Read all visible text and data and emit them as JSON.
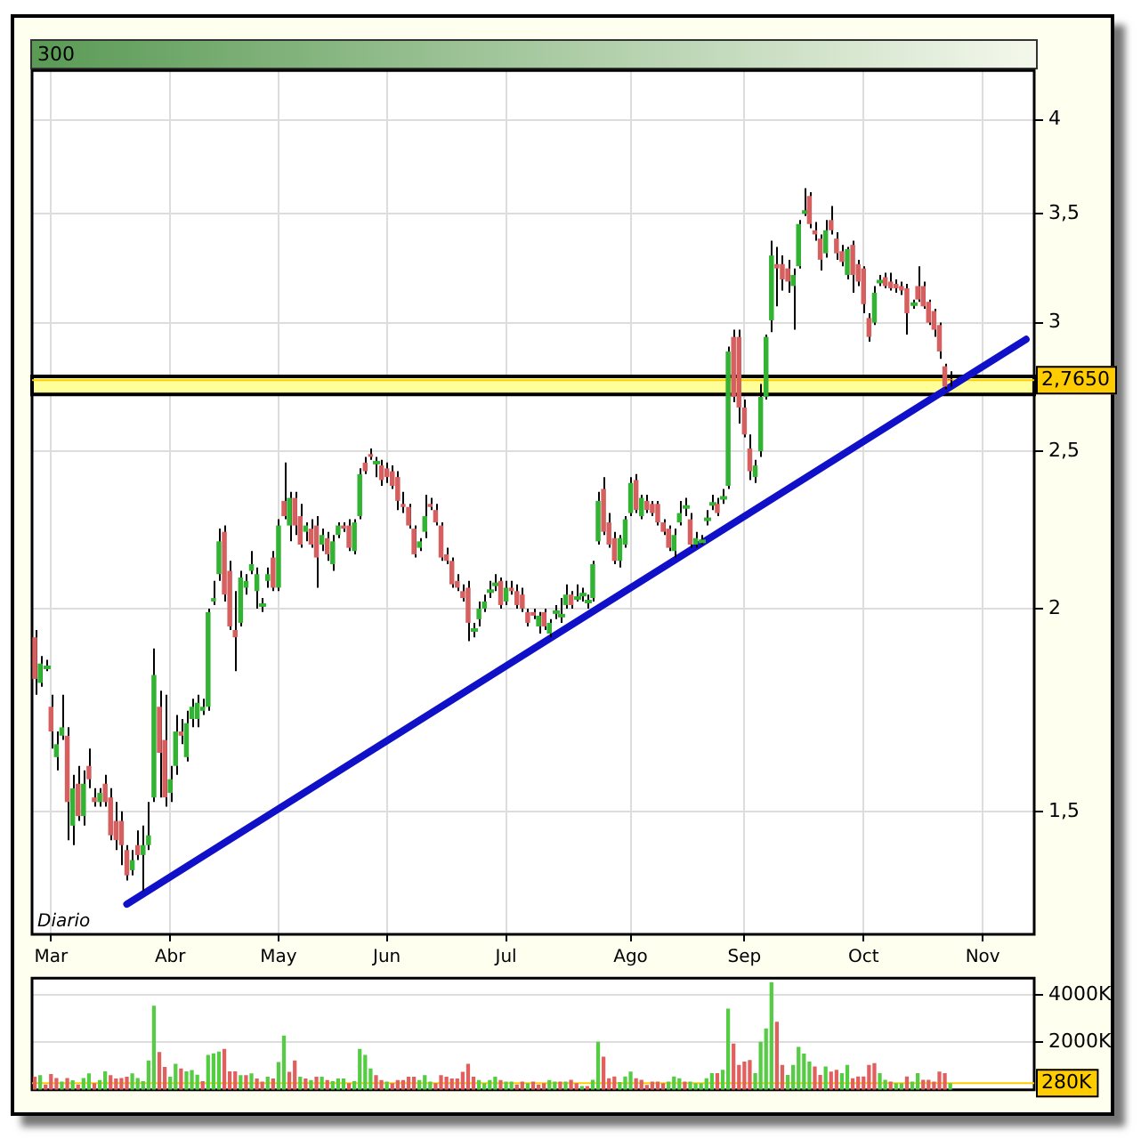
{
  "chart_data": [
    {
      "type": "candlestick",
      "title": "300",
      "categories": [
        null,
        null,
        null,
        "Mar",
        null,
        null,
        null,
        null,
        null,
        null,
        null,
        null,
        null,
        null,
        null,
        null,
        null,
        null,
        null,
        null,
        null,
        null,
        null,
        null,
        null,
        "Abr",
        null,
        null,
        null,
        null,
        null,
        null,
        null,
        null,
        null,
        null,
        null,
        null,
        null,
        null,
        null,
        null,
        null,
        null,
        null,
        "May",
        null,
        null,
        null,
        null,
        null,
        null,
        null,
        null,
        null,
        null,
        null,
        null,
        null,
        null,
        null,
        null,
        null,
        null,
        null,
        "Jun",
        null,
        null,
        null,
        null,
        null,
        null,
        null,
        null,
        null,
        null,
        null,
        null,
        null,
        null,
        null,
        null,
        null,
        null,
        null,
        null,
        null,
        "Jul",
        null,
        null,
        null,
        null,
        null,
        null,
        null,
        null,
        null,
        null,
        null,
        null,
        null,
        null,
        null,
        null,
        null,
        null,
        null,
        null,
        null,
        null,
        "Ago",
        null,
        null,
        null,
        null,
        null,
        null,
        null,
        null,
        null,
        null,
        null,
        null,
        null,
        null,
        null,
        null,
        null,
        null,
        null,
        null,
        "Sep",
        null,
        null,
        null,
        null,
        null,
        null,
        null,
        null,
        null,
        null,
        null,
        null,
        null,
        null,
        null,
        null,
        null,
        null,
        null,
        null,
        null,
        "Oct",
        null,
        null,
        null,
        null,
        null,
        null,
        null,
        null,
        null,
        null,
        null,
        null,
        null,
        null,
        null,
        null,
        null,
        null,
        null,
        null,
        null,
        "Nov",
        null,
        null,
        null,
        null,
        null,
        null,
        null,
        null,
        null
      ],
      "series": [
        {
          "type": "candlestick",
          "ohlc": [
            [
              1.92,
              1.94,
              1.77,
              1.81
            ],
            [
              1.8,
              1.87,
              1.79,
              1.85
            ],
            [
              1.84,
              1.86,
              1.83,
              1.84
            ],
            [
              1.74,
              1.77,
              1.64,
              1.68
            ],
            [
              1.62,
              1.68,
              1.59,
              1.65
            ],
            [
              1.67,
              1.77,
              1.66,
              1.69
            ],
            [
              1.67,
              1.69,
              1.44,
              1.52
            ],
            [
              1.47,
              1.58,
              1.43,
              1.55
            ],
            [
              1.56,
              1.6,
              1.48,
              1.49
            ],
            [
              1.49,
              1.59,
              1.47,
              1.56
            ],
            [
              1.6,
              1.64,
              1.55,
              1.57
            ],
            [
              1.53,
              1.55,
              1.51,
              1.52
            ],
            [
              1.52,
              1.55,
              1.51,
              1.54
            ],
            [
              1.56,
              1.58,
              1.51,
              1.52
            ],
            [
              1.53,
              1.55,
              1.44,
              1.45
            ],
            [
              1.48,
              1.52,
              1.42,
              1.44
            ],
            [
              1.48,
              1.5,
              1.39,
              1.43
            ],
            [
              1.42,
              1.43,
              1.36,
              1.37
            ],
            [
              1.38,
              1.42,
              1.37,
              1.4
            ],
            [
              1.43,
              1.46,
              1.4,
              1.41
            ],
            [
              1.41,
              1.47,
              1.34,
              1.43
            ],
            [
              1.43,
              1.52,
              1.42,
              1.45
            ],
            [
              1.53,
              1.89,
              1.52,
              1.82
            ],
            [
              1.74,
              1.78,
              1.53,
              1.63
            ],
            [
              1.66,
              1.77,
              1.51,
              1.53
            ],
            [
              1.54,
              1.6,
              1.52,
              1.57
            ],
            [
              1.6,
              1.72,
              1.58,
              1.68
            ],
            [
              1.68,
              1.71,
              1.65,
              1.67
            ],
            [
              1.62,
              1.73,
              1.61,
              1.7
            ],
            [
              1.71,
              1.76,
              1.69,
              1.74
            ],
            [
              1.71,
              1.77,
              1.69,
              1.75
            ],
            [
              1.73,
              1.76,
              1.72,
              1.74
            ],
            [
              1.74,
              2.0,
              1.73,
              1.99
            ],
            [
              2.02,
              2.08,
              2.01,
              2.03
            ],
            [
              2.1,
              2.24,
              2.08,
              2.2
            ],
            [
              2.23,
              2.25,
              2.02,
              2.04
            ],
            [
              2.11,
              2.14,
              1.94,
              1.95
            ],
            [
              1.94,
              2.05,
              1.83,
              1.92
            ],
            [
              1.96,
              2.11,
              1.95,
              2.09
            ],
            [
              2.06,
              2.1,
              2.04,
              2.08
            ],
            [
              2.11,
              2.17,
              2.1,
              2.13
            ],
            [
              2.05,
              2.12,
              2.0,
              2.1
            ],
            [
              2.01,
              2.03,
              1.99,
              2.01
            ],
            [
              2.08,
              2.12,
              2.06,
              2.1
            ],
            [
              2.15,
              2.17,
              2.05,
              2.06
            ],
            [
              2.06,
              2.27,
              2.05,
              2.25
            ],
            [
              2.33,
              2.46,
              2.27,
              2.28
            ],
            [
              2.25,
              2.36,
              2.2,
              2.34
            ],
            [
              2.34,
              2.36,
              2.22,
              2.25
            ],
            [
              2.28,
              2.32,
              2.18,
              2.19
            ],
            [
              2.23,
              2.26,
              2.2,
              2.25
            ],
            [
              2.24,
              2.27,
              2.18,
              2.19
            ],
            [
              2.25,
              2.28,
              2.06,
              2.15
            ],
            [
              2.19,
              2.24,
              2.17,
              2.22
            ],
            [
              2.21,
              2.23,
              2.14,
              2.16
            ],
            [
              2.13,
              2.22,
              2.11,
              2.2
            ],
            [
              2.22,
              2.26,
              2.21,
              2.25
            ],
            [
              2.25,
              2.26,
              2.23,
              2.24
            ],
            [
              2.25,
              2.27,
              2.17,
              2.18
            ],
            [
              2.17,
              2.27,
              2.16,
              2.26
            ],
            [
              2.28,
              2.44,
              2.27,
              2.42
            ],
            [
              2.46,
              2.48,
              2.42,
              2.43
            ],
            [
              2.49,
              2.51,
              2.47,
              2.48
            ],
            [
              2.46,
              2.48,
              2.41,
              2.46
            ],
            [
              2.45,
              2.47,
              2.38,
              2.4
            ],
            [
              2.44,
              2.46,
              2.39,
              2.41
            ],
            [
              2.43,
              2.45,
              2.37,
              2.38
            ],
            [
              2.41,
              2.43,
              2.3,
              2.33
            ],
            [
              2.32,
              2.36,
              2.29,
              2.31
            ],
            [
              2.31,
              2.32,
              2.24,
              2.25
            ],
            [
              2.24,
              2.25,
              2.15,
              2.16
            ],
            [
              2.18,
              2.21,
              2.17,
              2.2
            ],
            [
              2.23,
              2.35,
              2.21,
              2.28
            ],
            [
              2.32,
              2.34,
              2.3,
              2.31
            ],
            [
              2.3,
              2.32,
              2.25,
              2.26
            ],
            [
              2.25,
              2.26,
              2.14,
              2.15
            ],
            [
              2.16,
              2.18,
              2.13,
              2.14
            ],
            [
              2.14,
              2.15,
              2.06,
              2.07
            ],
            [
              2.08,
              2.1,
              2.05,
              2.06
            ],
            [
              2.05,
              2.07,
              2.02,
              2.03
            ],
            [
              2.06,
              2.08,
              1.91,
              1.96
            ],
            [
              1.94,
              1.96,
              1.92,
              1.94
            ],
            [
              1.97,
              2.02,
              1.95,
              2.0
            ],
            [
              2.0,
              2.04,
              1.99,
              2.02
            ],
            [
              2.05,
              2.08,
              2.03,
              2.05
            ],
            [
              2.07,
              2.1,
              2.05,
              2.07
            ],
            [
              2.08,
              2.09,
              2.0,
              2.01
            ],
            [
              2.02,
              2.08,
              2.01,
              2.06
            ],
            [
              2.06,
              2.08,
              2.04,
              2.05
            ],
            [
              2.05,
              2.07,
              2.0,
              2.01
            ],
            [
              2.04,
              2.06,
              1.99,
              2.0
            ],
            [
              1.99,
              2.0,
              1.95,
              1.96
            ],
            [
              1.99,
              2.0,
              1.97,
              1.98
            ],
            [
              1.95,
              1.99,
              1.93,
              1.98
            ],
            [
              1.99,
              2.0,
              1.94,
              1.95
            ],
            [
              1.93,
              1.97,
              1.92,
              1.96
            ],
            [
              1.99,
              2.01,
              1.97,
              1.99
            ],
            [
              1.98,
              2.03,
              1.96,
              1.98
            ],
            [
              2.01,
              2.07,
              2.0,
              2.04
            ],
            [
              2.04,
              2.05,
              2.0,
              2.01
            ],
            [
              2.03,
              2.07,
              2.02,
              2.03
            ],
            [
              2.04,
              2.06,
              2.02,
              2.04
            ],
            [
              2.02,
              2.04,
              2.0,
              2.02
            ],
            [
              2.03,
              2.14,
              2.02,
              2.13
            ],
            [
              2.2,
              2.36,
              2.19,
              2.33
            ],
            [
              2.37,
              2.41,
              2.22,
              2.23
            ],
            [
              2.26,
              2.29,
              2.18,
              2.19
            ],
            [
              2.21,
              2.23,
              2.13,
              2.14
            ],
            [
              2.14,
              2.22,
              2.12,
              2.21
            ],
            [
              2.19,
              2.28,
              2.18,
              2.27
            ],
            [
              2.29,
              2.41,
              2.28,
              2.39
            ],
            [
              2.4,
              2.42,
              2.29,
              2.3
            ],
            [
              2.28,
              2.35,
              2.27,
              2.34
            ],
            [
              2.33,
              2.35,
              2.29,
              2.3
            ],
            [
              2.32,
              2.33,
              2.28,
              2.29
            ],
            [
              2.32,
              2.33,
              2.25,
              2.26
            ],
            [
              2.26,
              2.27,
              2.22,
              2.23
            ],
            [
              2.24,
              2.25,
              2.17,
              2.18
            ],
            [
              2.17,
              2.24,
              2.15,
              2.22
            ],
            [
              2.26,
              2.33,
              2.25,
              2.29
            ],
            [
              2.31,
              2.34,
              2.28,
              2.31
            ],
            [
              2.27,
              2.29,
              2.18,
              2.19
            ],
            [
              2.19,
              2.23,
              2.18,
              2.21
            ],
            [
              2.2,
              2.22,
              2.19,
              2.2
            ],
            [
              2.27,
              2.3,
              2.25,
              2.27
            ],
            [
              2.32,
              2.35,
              2.3,
              2.32
            ],
            [
              2.32,
              2.34,
              2.28,
              2.29
            ],
            [
              2.34,
              2.37,
              2.32,
              2.34
            ],
            [
              2.38,
              2.9,
              2.37,
              2.88
            ],
            [
              2.94,
              2.97,
              2.68,
              2.7
            ],
            [
              2.94,
              2.97,
              2.6,
              2.66
            ],
            [
              2.66,
              2.69,
              2.55,
              2.56
            ],
            [
              2.51,
              2.56,
              2.4,
              2.43
            ],
            [
              2.41,
              2.47,
              2.39,
              2.45
            ],
            [
              2.5,
              2.75,
              2.48,
              2.7
            ],
            [
              2.7,
              2.95,
              2.69,
              2.94
            ],
            [
              3.01,
              3.37,
              2.96,
              3.3
            ],
            [
              3.26,
              3.34,
              3.07,
              3.24
            ],
            [
              3.26,
              3.3,
              3.14,
              3.19
            ],
            [
              3.24,
              3.28,
              3.13,
              3.18
            ],
            [
              3.16,
              3.24,
              2.97,
              3.21
            ],
            [
              3.25,
              3.47,
              3.24,
              3.45
            ],
            [
              3.51,
              3.63,
              3.49,
              3.51
            ],
            [
              3.59,
              3.61,
              3.43,
              3.45
            ],
            [
              3.42,
              3.46,
              3.37,
              3.4
            ],
            [
              3.38,
              3.4,
              3.23,
              3.28
            ],
            [
              3.31,
              3.47,
              3.29,
              3.42
            ],
            [
              3.47,
              3.54,
              3.4,
              3.42
            ],
            [
              3.38,
              3.41,
              3.28,
              3.31
            ],
            [
              3.32,
              3.35,
              3.25,
              3.27
            ],
            [
              3.21,
              3.34,
              3.19,
              3.33
            ],
            [
              3.35,
              3.37,
              3.13,
              3.21
            ],
            [
              3.26,
              3.28,
              3.16,
              3.18
            ],
            [
              3.24,
              3.25,
              3.04,
              3.08
            ],
            [
              3.02,
              3.04,
              2.92,
              2.94
            ],
            [
              3.0,
              3.16,
              2.99,
              3.13
            ],
            [
              3.18,
              3.21,
              3.16,
              3.18
            ],
            [
              3.2,
              3.22,
              3.15,
              3.16
            ],
            [
              3.18,
              3.22,
              3.14,
              3.15
            ],
            [
              3.17,
              3.19,
              3.13,
              3.15
            ],
            [
              3.16,
              3.18,
              3.12,
              3.14
            ],
            [
              3.15,
              3.17,
              2.95,
              3.04
            ],
            [
              3.08,
              3.1,
              3.06,
              3.08
            ],
            [
              3.16,
              3.25,
              3.09,
              3.1
            ],
            [
              3.16,
              3.18,
              3.06,
              3.07
            ],
            [
              3.09,
              3.1,
              2.99,
              3.0
            ],
            [
              3.05,
              3.06,
              2.94,
              2.97
            ],
            [
              2.99,
              3.0,
              2.85,
              2.88
            ],
            [
              2.82,
              2.83,
              2.73,
              2.74
            ],
            [
              2.77,
              2.8,
              2.74,
              2.765
            ],
            null,
            null,
            null,
            null,
            null,
            null,
            null,
            null,
            null,
            null,
            null,
            null,
            null,
            null,
            null
          ],
          "colors": [
            "#d65f5f",
            "#33b333",
            "#33b333",
            "#d65f5f",
            "#33b333",
            "#33b333",
            "#d65f5f",
            "#33b333",
            "#d65f5f",
            "#33b333",
            "#d65f5f",
            "#d65f5f",
            "#33b333",
            "#d65f5f",
            "#d65f5f",
            "#d65f5f",
            "#d65f5f",
            "#d65f5f",
            "#33b333",
            "#d65f5f",
            "#33b333",
            "#33b333",
            "#33b333",
            "#d65f5f",
            "#d65f5f",
            "#33b333",
            "#33b333",
            "#d65f5f",
            "#33b333",
            "#33b333",
            "#33b333",
            "#33b333",
            "#33b333",
            "#33b333",
            "#33b333",
            "#d65f5f",
            "#d65f5f",
            "#d65f5f",
            "#33b333",
            "#33b333",
            "#33b333",
            "#33b333",
            "#33b333",
            "#33b333",
            "#d65f5f",
            "#33b333",
            "#d65f5f",
            "#33b333",
            "#d65f5f",
            "#d65f5f",
            "#33b333",
            "#d65f5f",
            "#d65f5f",
            "#33b333",
            "#d65f5f",
            "#33b333",
            "#33b333",
            "#d65f5f",
            "#d65f5f",
            "#33b333",
            "#33b333",
            "#d65f5f",
            "#d65f5f",
            "#33b333",
            "#d65f5f",
            "#d65f5f",
            "#d65f5f",
            "#d65f5f",
            "#d65f5f",
            "#d65f5f",
            "#d65f5f",
            "#33b333",
            "#33b333",
            "#d65f5f",
            "#d65f5f",
            "#d65f5f",
            "#d65f5f",
            "#d65f5f",
            "#d65f5f",
            "#d65f5f",
            "#d65f5f",
            "#33b333",
            "#33b333",
            "#33b333",
            "#33b333",
            "#33b333",
            "#d65f5f",
            "#33b333",
            "#d65f5f",
            "#d65f5f",
            "#d65f5f",
            "#d65f5f",
            "#d65f5f",
            "#33b333",
            "#d65f5f",
            "#33b333",
            "#33b333",
            "#33b333",
            "#33b333",
            "#d65f5f",
            "#33b333",
            "#33b333",
            "#33b333",
            "#33b333",
            "#33b333",
            "#d65f5f",
            "#d65f5f",
            "#d65f5f",
            "#33b333",
            "#33b333",
            "#33b333",
            "#d65f5f",
            "#33b333",
            "#d65f5f",
            "#d65f5f",
            "#d65f5f",
            "#d65f5f",
            "#d65f5f",
            "#33b333",
            "#33b333",
            "#33b333",
            "#d65f5f",
            "#33b333",
            "#33b333",
            "#33b333",
            "#33b333",
            "#d65f5f",
            "#33b333",
            "#33b333",
            "#d65f5f",
            "#d65f5f",
            "#d65f5f",
            "#d65f5f",
            "#33b333",
            "#33b333",
            "#33b333",
            "#33b333",
            "#d65f5f",
            "#d65f5f",
            "#d65f5f",
            "#33b333",
            "#33b333",
            "#33b333",
            "#d65f5f",
            "#d65f5f",
            "#d65f5f",
            "#33b333",
            "#d65f5f",
            "#d65f5f",
            "#d65f5f",
            "#33b333",
            "#d65f5f",
            "#d65f5f",
            "#d65f5f",
            "#d65f5f",
            "#33b333",
            "#33b333",
            "#d65f5f",
            "#d65f5f",
            "#d65f5f",
            "#d65f5f",
            "#d65f5f",
            "#33b333",
            "#d65f5f",
            "#d65f5f",
            "#d65f5f",
            "#d65f5f",
            "#d65f5f",
            "#d65f5f",
            "#d65f5f",
            null,
            null,
            null,
            null,
            null,
            null,
            null,
            null,
            null,
            null,
            null,
            null,
            null,
            null,
            null
          ]
        },
        {
          "type": "line",
          "color": "#1010c8",
          "values": [
            null,
            null,
            null,
            null,
            null,
            null,
            null,
            null,
            null,
            null,
            null,
            null,
            null,
            null,
            null,
            null,
            null,
            1.315,
            null,
            null,
            null,
            null,
            null,
            null,
            null,
            null,
            null,
            null,
            null,
            null,
            null,
            null,
            null,
            null,
            null,
            null,
            null,
            null,
            null,
            null,
            null,
            null,
            null,
            null,
            null,
            null,
            null,
            null,
            null,
            null,
            null,
            null,
            null,
            null,
            null,
            null,
            null,
            null,
            null,
            null,
            null,
            null,
            null,
            null,
            null,
            null,
            null,
            null,
            null,
            null,
            null,
            null,
            null,
            null,
            null,
            null,
            null,
            null,
            null,
            null,
            null,
            null,
            null,
            null,
            null,
            null,
            null,
            null,
            null,
            null,
            null,
            null,
            null,
            null,
            null,
            null,
            null,
            null,
            null,
            null,
            null,
            null,
            null,
            null,
            null,
            null,
            null,
            null,
            null,
            null,
            null,
            null,
            null,
            null,
            null,
            null,
            null,
            null,
            null,
            null,
            null,
            null,
            null,
            null,
            null,
            null,
            null,
            null,
            null,
            null,
            null,
            null,
            null,
            null,
            null,
            null,
            null,
            null,
            null,
            null,
            null,
            null,
            null,
            null,
            null,
            null,
            null,
            null,
            null,
            null,
            null,
            null,
            null,
            null,
            null,
            null,
            null,
            null,
            null,
            null,
            null,
            null,
            null,
            null,
            null,
            null,
            null,
            null,
            null,
            null,
            null,
            null,
            null,
            null,
            null,
            null,
            null,
            null,
            null,
            null,
            null,
            null,
            null,
            2.93,
            null
          ]
        }
      ],
      "ylim": [
        1.26,
        4.29
      ],
      "yticks": [
        {
          "value": 1.5,
          "label": "1,5"
        },
        2,
        {
          "value": 2.5,
          "label": "2,5"
        },
        3,
        {
          "value": 3.5,
          "label": "3,5"
        },
        4
      ],
      "log": true,
      "grid": true,
      "bands": [
        {
          "axis": "y",
          "from": 2.71,
          "to": 2.78,
          "color": "#ffff99"
        }
      ],
      "ref_lines": [
        {
          "axis": "y",
          "value": 2.765,
          "label": "2,7650",
          "color": "#ffcc00"
        }
      ],
      "annotations": [
        "Diario"
      ]
    },
    {
      "type": "bar",
      "categories": [
        null,
        null,
        null,
        null,
        null,
        null,
        null,
        null,
        null,
        null,
        null,
        null,
        null,
        null,
        null,
        null,
        null,
        null,
        null,
        null,
        null,
        null,
        null,
        null,
        null,
        null,
        null,
        null,
        null,
        null,
        null,
        null,
        null,
        null,
        null,
        null,
        null,
        null,
        null,
        null,
        null,
        null,
        null,
        null,
        null,
        null,
        null,
        null,
        null,
        null,
        null,
        null,
        null,
        null,
        null,
        null,
        null,
        null,
        null,
        null,
        null,
        null,
        null,
        null,
        null,
        null,
        null,
        null,
        null,
        null,
        null,
        null,
        null,
        null,
        null,
        null,
        null,
        null,
        null,
        null,
        null,
        null,
        null,
        null,
        null,
        null,
        null,
        null,
        null,
        null,
        null,
        null,
        null,
        null,
        null,
        null,
        null,
        null,
        null,
        null,
        null,
        null,
        null,
        null,
        null,
        null,
        null,
        null,
        null,
        null,
        null,
        null,
        null,
        null,
        null,
        null,
        null,
        null,
        null,
        null,
        null,
        null,
        null,
        null,
        null,
        null,
        null,
        null,
        null,
        null,
        null,
        null,
        null,
        null,
        null,
        null,
        null,
        null,
        null,
        null,
        null,
        null,
        null,
        null,
        null,
        null,
        null,
        null,
        null,
        null,
        null,
        null,
        null,
        null,
        null,
        null,
        null,
        null,
        null,
        null,
        null,
        null,
        null,
        null,
        null,
        null,
        null,
        null,
        null,
        null,
        null,
        null,
        null,
        null,
        null,
        null,
        null,
        null,
        null,
        null,
        null,
        null,
        null,
        null,
        null
      ],
      "values": [
        550,
        620,
        230,
        670,
        500,
        350,
        500,
        400,
        230,
        500,
        690,
        280,
        410,
        780,
        620,
        480,
        500,
        550,
        690,
        500,
        370,
        1240,
        3540,
        1590,
        970,
        550,
        1100,
        900,
        780,
        830,
        640,
        370,
        1470,
        1540,
        1610,
        1720,
        780,
        780,
        620,
        620,
        690,
        480,
        350,
        550,
        480,
        1170,
        2280,
        760,
        1240,
        550,
        480,
        410,
        550,
        550,
        410,
        370,
        480,
        480,
        280,
        370,
        1720,
        1470,
        900,
        620,
        410,
        350,
        280,
        410,
        410,
        550,
        550,
        410,
        620,
        350,
        280,
        620,
        550,
        480,
        480,
        760,
        1100,
        550,
        410,
        280,
        410,
        550,
        410,
        350,
        350,
        230,
        350,
        280,
        350,
        230,
        280,
        410,
        350,
        350,
        350,
        420,
        280,
        160,
        160,
        420,
        2020,
        1400,
        490,
        560,
        330,
        560,
        770,
        490,
        420,
        210,
        350,
        350,
        280,
        350,
        560,
        490,
        350,
        350,
        280,
        280,
        490,
        700,
        700,
        840,
        3420,
        1950,
        1050,
        1190,
        1260,
        700,
        2020,
        2580,
        4530,
        2860,
        1050,
        630,
        1050,
        1810,
        1530,
        1190,
        980,
        630,
        980,
        770,
        840,
        700,
        1050,
        490,
        560,
        560,
        1050,
        1120,
        700,
        420,
        350,
        280,
        280,
        560,
        350,
        700,
        420,
        420,
        350,
        770,
        700,
        280,
        null,
        null,
        null,
        null,
        null,
        null,
        null,
        null,
        null,
        null,
        null,
        null,
        null,
        null,
        null
      ],
      "colors": [
        "#e06060",
        "#55cc44",
        "#e06060",
        "#e06060",
        "#e06060",
        "#55cc44",
        "#e06060",
        "#55cc44",
        "#e06060",
        "#55cc44",
        "#55cc44",
        "#e06060",
        "#55cc44",
        "#55cc44",
        "#e06060",
        "#e06060",
        "#e06060",
        "#e06060",
        "#55cc44",
        "#55cc44",
        "#55cc44",
        "#55cc44",
        "#55cc44",
        "#e06060",
        "#e06060",
        "#55cc44",
        "#55cc44",
        "#e06060",
        "#55cc44",
        "#55cc44",
        "#55cc44",
        "#e06060",
        "#55cc44",
        "#55cc44",
        "#55cc44",
        "#e06060",
        "#e06060",
        "#e06060",
        "#55cc44",
        "#e06060",
        "#55cc44",
        "#e06060",
        "#e06060",
        "#55cc44",
        "#e06060",
        "#55cc44",
        "#55cc44",
        "#e06060",
        "#e06060",
        "#55cc44",
        "#e06060",
        "#55cc44",
        "#e06060",
        "#55cc44",
        "#e06060",
        "#55cc44",
        "#55cc44",
        "#55cc44",
        "#e06060",
        "#55cc44",
        "#55cc44",
        "#55cc44",
        "#55cc44",
        "#e06060",
        "#e06060",
        "#55cc44",
        "#e06060",
        "#e06060",
        "#e06060",
        "#e06060",
        "#e06060",
        "#55cc44",
        "#55cc44",
        "#55cc44",
        "#e06060",
        "#e06060",
        "#e06060",
        "#e06060",
        "#e06060",
        "#e06060",
        "#e06060",
        "#e06060",
        "#55cc44",
        "#55cc44",
        "#55cc44",
        "#55cc44",
        "#e06060",
        "#55cc44",
        "#55cc44",
        "#e06060",
        "#e06060",
        "#55cc44",
        "#e06060",
        "#e06060",
        "#e06060",
        "#55cc44",
        "#55cc44",
        "#e06060",
        "#55cc44",
        "#e06060",
        "#e06060",
        "#55cc44",
        "#e06060",
        "#55cc44",
        "#55cc44",
        "#e06060",
        "#e06060",
        "#e06060",
        "#55cc44",
        "#55cc44",
        "#55cc44",
        "#e06060",
        "#e06060",
        "#e06060",
        "#e06060",
        "#e06060",
        "#e06060",
        "#55cc44",
        "#55cc44",
        "#55cc44",
        "#e06060",
        "#55cc44",
        "#55cc44",
        "#55cc44",
        "#55cc44",
        "#55cc44",
        "#e06060",
        "#55cc44",
        "#55cc44",
        "#e06060",
        "#e06060",
        "#e06060",
        "#e06060",
        "#55cc44",
        "#55cc44",
        "#55cc44",
        "#55cc44",
        "#e06060",
        "#e06060",
        "#55cc44",
        "#55cc44",
        "#55cc44",
        "#55cc44",
        "#55cc44",
        "#e06060",
        "#e06060",
        "#55cc44",
        "#e06060",
        "#e06060",
        "#55cc44",
        "#55cc44",
        "#e06060",
        "#e06060",
        "#e06060",
        "#e06060",
        "#e06060",
        "#55cc44",
        "#55cc44",
        "#e06060",
        "#55cc44",
        "#55cc44",
        "#e06060",
        "#55cc44",
        "#55cc44",
        "#e06060",
        "#e06060",
        "#e06060",
        "#e06060",
        "#e06060",
        "#55cc44",
        null,
        null,
        null,
        null,
        null,
        null,
        null,
        null,
        null,
        null,
        null,
        null,
        null,
        null,
        null
      ],
      "ylim": [
        0,
        4700
      ],
      "yticks": [
        {
          "value": 2000,
          "label": "2000K"
        },
        {
          "value": 4000,
          "label": "4000K"
        }
      ],
      "grid": "y",
      "tick_labels": "y",
      "ref_lines": [
        {
          "axis": "y",
          "value": 280,
          "label": "280K",
          "color": "#ffcc00"
        }
      ]
    }
  ]
}
